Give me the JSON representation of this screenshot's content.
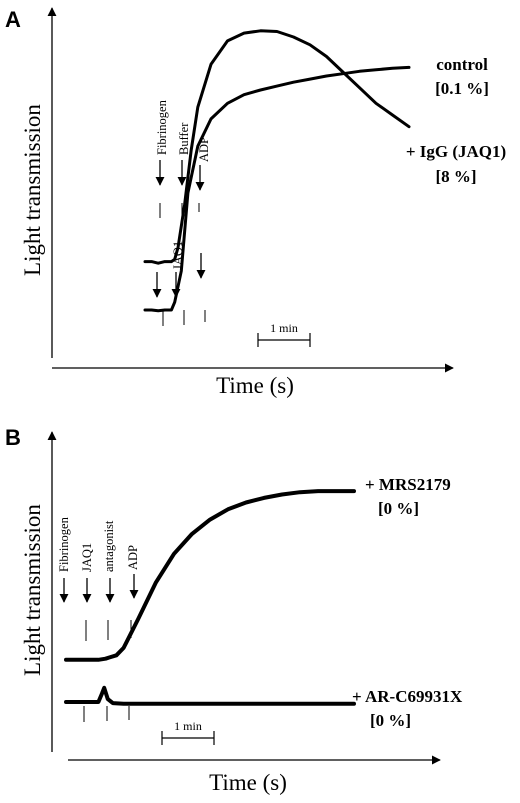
{
  "chart_data": [
    {
      "panel": "A",
      "type": "line",
      "ylabel": "Light transmission",
      "xlabel": "Time (s)",
      "scale_bar": "1 min",
      "events_top": [
        "Fibrinogen",
        "Buffer",
        "ADP"
      ],
      "events_bottom": [
        "JAQ1"
      ],
      "series": [
        {
          "label": "control",
          "value_label": "[0.1 %]",
          "x": [
            0,
            0.1,
            0.2,
            0.3,
            0.4,
            0.45,
            0.5,
            0.6,
            0.7,
            0.8,
            1.0,
            1.25,
            1.5,
            1.75,
            2.0,
            2.25,
            2.5,
            2.75,
            3.0,
            3.25,
            3.5,
            3.75,
            4.0
          ],
          "y": [
            0.62,
            0.62,
            0.6,
            0.62,
            0.62,
            0.65,
            0.8,
            1.35,
            2.05,
            2.6,
            3.15,
            3.45,
            3.55,
            3.58,
            3.57,
            3.5,
            3.4,
            3.25,
            3.05,
            2.85,
            2.65,
            2.5,
            2.35
          ]
        },
        {
          "label": "+ IgG (JAQ1)",
          "value_label": "[8 %]",
          "x": [
            0,
            0.1,
            0.2,
            0.3,
            0.4,
            0.45,
            0.55,
            0.65,
            0.8,
            1.0,
            1.25,
            1.5,
            1.75,
            2.0,
            2.25,
            2.5,
            2.75,
            3.0,
            3.25,
            3.5,
            3.75,
            4.0
          ],
          "y": [
            0.0,
            0.0,
            -0.01,
            0.0,
            0.0,
            0.1,
            0.5,
            1.5,
            2.1,
            2.45,
            2.65,
            2.76,
            2.82,
            2.87,
            2.92,
            2.96,
            3.0,
            3.03,
            3.06,
            3.08,
            3.1,
            3.11
          ]
        }
      ]
    },
    {
      "panel": "B",
      "type": "line",
      "ylabel": "Light transmission",
      "xlabel": "Time (s)",
      "scale_bar": "1 min",
      "events": [
        "Fibrinogen",
        "JAQ1\nantagonist",
        "ADP"
      ],
      "series": [
        {
          "label": "+ MRS2179",
          "value_label": "[0 %]",
          "x": [
            0,
            0.15,
            0.3,
            0.45,
            0.55,
            0.6,
            0.7,
            0.8,
            1.0,
            1.25,
            1.5,
            1.75,
            2.0,
            2.25,
            2.5,
            2.75,
            3.0,
            3.25,
            3.5,
            3.75,
            4.0
          ],
          "y": [
            0.74,
            0.74,
            0.74,
            0.74,
            0.76,
            0.78,
            0.82,
            0.95,
            1.45,
            2.1,
            2.6,
            2.95,
            3.2,
            3.38,
            3.5,
            3.58,
            3.64,
            3.68,
            3.7,
            3.7,
            3.7
          ]
        },
        {
          "label": "+ AR-C69931X",
          "value_label": "[0 %]",
          "x": [
            0,
            0.15,
            0.3,
            0.45,
            0.5,
            0.53,
            0.58,
            0.65,
            0.8,
            1.0,
            1.5,
            2.0,
            2.5,
            3.0,
            3.5,
            4.0
          ],
          "y": [
            0.0,
            0.0,
            0.0,
            0.0,
            0.15,
            0.25,
            0.05,
            -0.02,
            -0.03,
            -0.03,
            -0.03,
            -0.03,
            -0.03,
            -0.03,
            -0.03,
            -0.03
          ]
        }
      ]
    }
  ],
  "panel_a": {
    "label": "A",
    "ylabel": "Light transmission",
    "xlabel": "Time (s)",
    "scale": "1 min",
    "events": {
      "fibrinogen": "Fibrinogen",
      "buffer": "Buffer",
      "adp": "ADP",
      "jaq1": "JAQ1"
    },
    "control_label": "control",
    "control_pct": "[0.1 %]",
    "igg_label": "+ IgG (JAQ1)",
    "igg_pct": "[8 %]"
  },
  "panel_b": {
    "label": "B",
    "ylabel": "Light transmission",
    "xlabel": "Time (s)",
    "scale": "1 min",
    "events": {
      "fibrinogen": "Fibrinogen",
      "jaq1": "JAQ1",
      "antagonist": "antagonist",
      "adp": "ADP"
    },
    "mrs_label": "+ MRS2179",
    "mrs_pct": "[0 %]",
    "ar_label": "+ AR-C69931X",
    "ar_pct": "[0 %]"
  }
}
